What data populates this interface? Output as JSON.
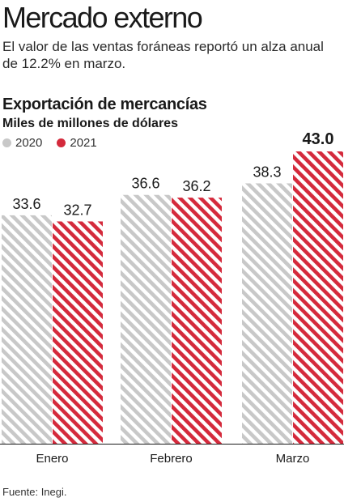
{
  "headline": "Mercado externo",
  "deck": "El valor de las ventas foráneas reportó un alza anual de 12.2% en marzo.",
  "source": "Fuente: Inegi.",
  "colors": {
    "series_2020": "#c8c8c8",
    "series_2021": "#d42a3c",
    "baseline": "#1a1a1a"
  },
  "chart_data": {
    "type": "bar",
    "title": "Exportación de mercancías",
    "subtitle": "Miles de millones de dólares",
    "categories": [
      "Enero",
      "Febrero",
      "Marzo"
    ],
    "series": [
      {
        "name": "2020",
        "values": [
          33.6,
          36.6,
          38.3
        ],
        "labels": [
          "33.6",
          "36.6",
          "38.3"
        ],
        "pattern": "diagonal-stripes"
      },
      {
        "name": "2021",
        "values": [
          32.7,
          36.2,
          43.0
        ],
        "labels": [
          "32.7",
          "36.2",
          "43.0"
        ],
        "pattern": "diagonal-stripes"
      }
    ],
    "highlighted_label": "43.0",
    "ylim": [
      0,
      43.0
    ],
    "grid": false,
    "legend_position": "top-left"
  }
}
